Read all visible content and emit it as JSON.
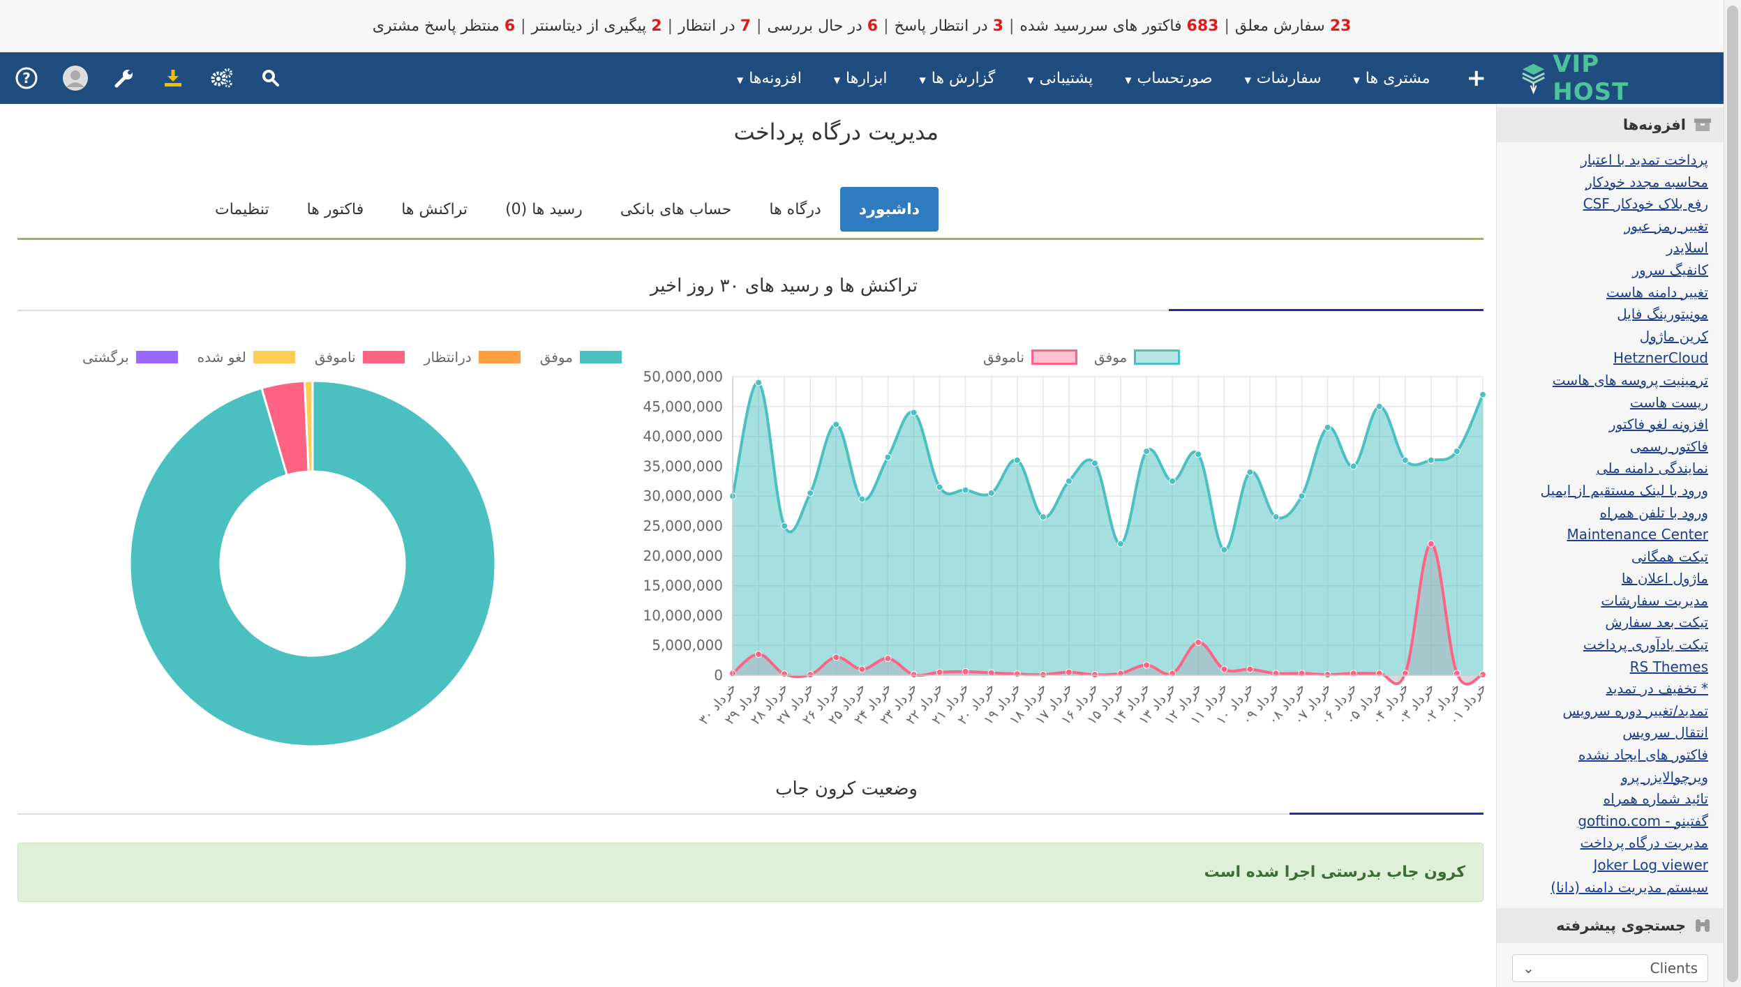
{
  "topbar": {
    "items": [
      {
        "num": "23",
        "label": "سفارش معلق"
      },
      {
        "num": "683",
        "label": "فاکتور های سررسید شده"
      },
      {
        "num": "3",
        "label": "در انتظار پاسخ"
      },
      {
        "num": "6",
        "label": "در حال بررسی"
      },
      {
        "num": "7",
        "label": "در انتظار"
      },
      {
        "num": "2",
        "label": "پیگیری از دیتاسنتر"
      },
      {
        "num": "6",
        "label": "منتظر پاسخ مشتری"
      }
    ]
  },
  "logo": {
    "text": "VIP HOST",
    "color": "#4ec29a"
  },
  "nav": {
    "items": [
      "مشتری ها",
      "سفارشات",
      "صورتحساب",
      "پشتیبانی",
      "گزارش ها",
      "ابزارها",
      "افزونه‌ها"
    ],
    "icons": [
      "help-icon",
      "user-avatar-icon",
      "wrench-icon",
      "download-icon",
      "cogs-icon",
      "search-icon"
    ],
    "bg_color": "#1f4d80"
  },
  "sidebar": {
    "addons_title": "افزونه‌ها",
    "links": [
      "پرداخت تمدید با اعتبار",
      "محاسبه مجدد خودکار",
      "رفع بلاک خودکار CSF",
      "تغییر رمز عبور",
      "اسلایدر",
      "کانفیگ سرور",
      "تغییر دامنه هاست",
      "مونیتورینگ فایل",
      "کرین ماژول",
      "HetznerCloud",
      "ترمینیت پروسه های هاست",
      "ریست هاست",
      "افزونه لغو فاکتور",
      "فاکتور رسمی",
      "نمایندگی دامنه ملی",
      "ورود با لینک مستقیم از ایمیل",
      "ورود با تلفن همراه",
      "Maintenance Center",
      "تیکت همگانی",
      "ماژول اعلان ها",
      "مدیریت سفارشات",
      "تیکت بعد سفارش",
      "تیکت یادآوری پرداخت",
      "RS Themes",
      "* تخفیف در تمدید",
      "تمدید/تغییر دوره سرویس",
      "انتقال سرویس",
      "فاکتور های ایجاد نشده",
      "ویرچوالایزر پرو",
      "تائید شماره همراه",
      "گفتینو - goftino.com",
      "مدیریت درگاه پرداخت",
      "Joker Log viewer",
      "سیستم مدیریت دامنه (دانا)"
    ],
    "search_title": "جستجوی پیشرفته",
    "search_select": "Clients"
  },
  "page": {
    "title": "مدیریت درگاه پرداخت",
    "tabs": [
      "داشبورد",
      "درگاه ها",
      "حساب های بانکی",
      "رسید ها (0)",
      "تراکنش ها",
      "فاکتور ها",
      "تنظیمات"
    ],
    "active_tab": 0,
    "section1_title": "تراکنش ها و رسید های ۳۰ روز اخیر",
    "section2_title": "وضعیت کرون جاب",
    "cron_message": "کرون جاب بدرستی اجرا شده است"
  },
  "chart_data": [
    {
      "type": "area",
      "categories": [
        "۳۰ خرداد",
        "۲۹ خرداد",
        "۲۸ خرداد",
        "۲۷ خرداد",
        "۲۶ خرداد",
        "۲۵ خرداد",
        "۲۴ خرداد",
        "۲۳ خرداد",
        "۲۲ خرداد",
        "۲۱ خرداد",
        "۲۰ خرداد",
        "۱۹ خرداد",
        "۱۸ خرداد",
        "۱۷ خرداد",
        "۱۶ خرداد",
        "۱۵ خرداد",
        "۱۴ خرداد",
        "۱۳ خرداد",
        "۱۲ خرداد",
        "۱۱ خرداد",
        "۱۰ خرداد",
        "۰۹ خرداد",
        "۰۸ خرداد",
        "۰۷ خرداد",
        "۰۶ خرداد",
        "۰۵ خرداد",
        "۰۴ خرداد",
        "۰۳ خرداد",
        "۰۲ خرداد",
        "۰۱ خرداد"
      ],
      "series": [
        {
          "name": "موفق",
          "color": "#4bc0c0",
          "values": [
            30000000,
            49000000,
            25000000,
            30500000,
            42000000,
            29500000,
            36500000,
            44000000,
            31500000,
            31000000,
            30500000,
            36000000,
            26500000,
            32500000,
            35500000,
            22000000,
            37500000,
            32500000,
            37000000,
            21000000,
            34000000,
            26500000,
            30000000,
            41500000,
            35000000,
            45000000,
            36000000,
            36000000,
            37500000,
            47000000
          ]
        },
        {
          "name": "ناموفق",
          "color": "#ff6384",
          "values": [
            300000,
            3500000,
            200000,
            100000,
            3000000,
            1000000,
            2800000,
            100000,
            500000,
            600000,
            400000,
            200000,
            100000,
            500000,
            100000,
            300000,
            1700000,
            300000,
            5500000,
            1000000,
            1000000,
            300000,
            300000,
            100000,
            300000,
            300000,
            300000,
            22000000,
            300000,
            100000
          ]
        }
      ],
      "ylim": [
        0,
        50000000
      ],
      "yticks": [
        "0",
        "5,000,000",
        "10,000,000",
        "15,000,000",
        "20,000,000",
        "25,000,000",
        "30,000,000",
        "35,000,000",
        "40,000,000",
        "45,000,000",
        "50,000,000"
      ],
      "legend": "top"
    },
    {
      "type": "pie",
      "labels": [
        "موفق",
        "درانتظار",
        "ناموفق",
        "لغو شده",
        "برگشتی"
      ],
      "colors": [
        "#4bc0c0",
        "#ff9f40",
        "#ff6384",
        "#ffcd56",
        "#9966ff"
      ],
      "values": [
        95.5,
        0,
        3.8,
        0.7,
        0
      ],
      "legend": "top"
    }
  ]
}
